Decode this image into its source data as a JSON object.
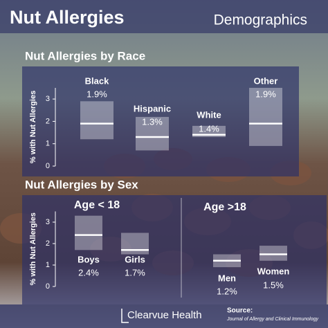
{
  "header": {
    "title": "Nut Allergies",
    "subtitle": "Demographics"
  },
  "chart_data": [
    {
      "type": "range",
      "title": "Nut Allergies by Race",
      "y_label": "% with Nut Allergies",
      "categories": [
        "Black",
        "Hispanic",
        "White",
        "Other"
      ],
      "values": [
        1.9,
        1.3,
        1.4,
        1.9
      ],
      "value_labels": [
        "1.9%",
        "1.3%",
        "1.4%",
        "1.9%"
      ],
      "lower": [
        1.2,
        0.7,
        1.3,
        0.9
      ],
      "upper": [
        2.9,
        2.2,
        1.8,
        3.5
      ],
      "ylim": [
        0,
        3.5
      ],
      "yticks": [
        0,
        1,
        2,
        3
      ],
      "color": "#ffffff"
    },
    {
      "type": "range",
      "title": "Nut Allergies by Sex",
      "y_label": "% with Nut Allergies",
      "group_labels": [
        "Age < 18",
        "Age >18"
      ],
      "categories": [
        "Boys",
        "Girls",
        "Men",
        "Women"
      ],
      "values": [
        2.4,
        1.7,
        1.2,
        1.5
      ],
      "value_labels": [
        "2.4%",
        "1.7%",
        "1.2%",
        "1.5%"
      ],
      "lower": [
        1.7,
        1.5,
        0.9,
        1.2
      ],
      "upper": [
        3.3,
        2.5,
        1.5,
        1.9
      ],
      "ylim": [
        0,
        3.5
      ],
      "yticks": [
        0,
        1,
        2,
        3
      ],
      "color": "#ffffff"
    }
  ],
  "footer": {
    "brand": "Clearvue Health",
    "source_label": "Source:",
    "source": "Journal of Allergy and Clinical Immunology"
  }
}
